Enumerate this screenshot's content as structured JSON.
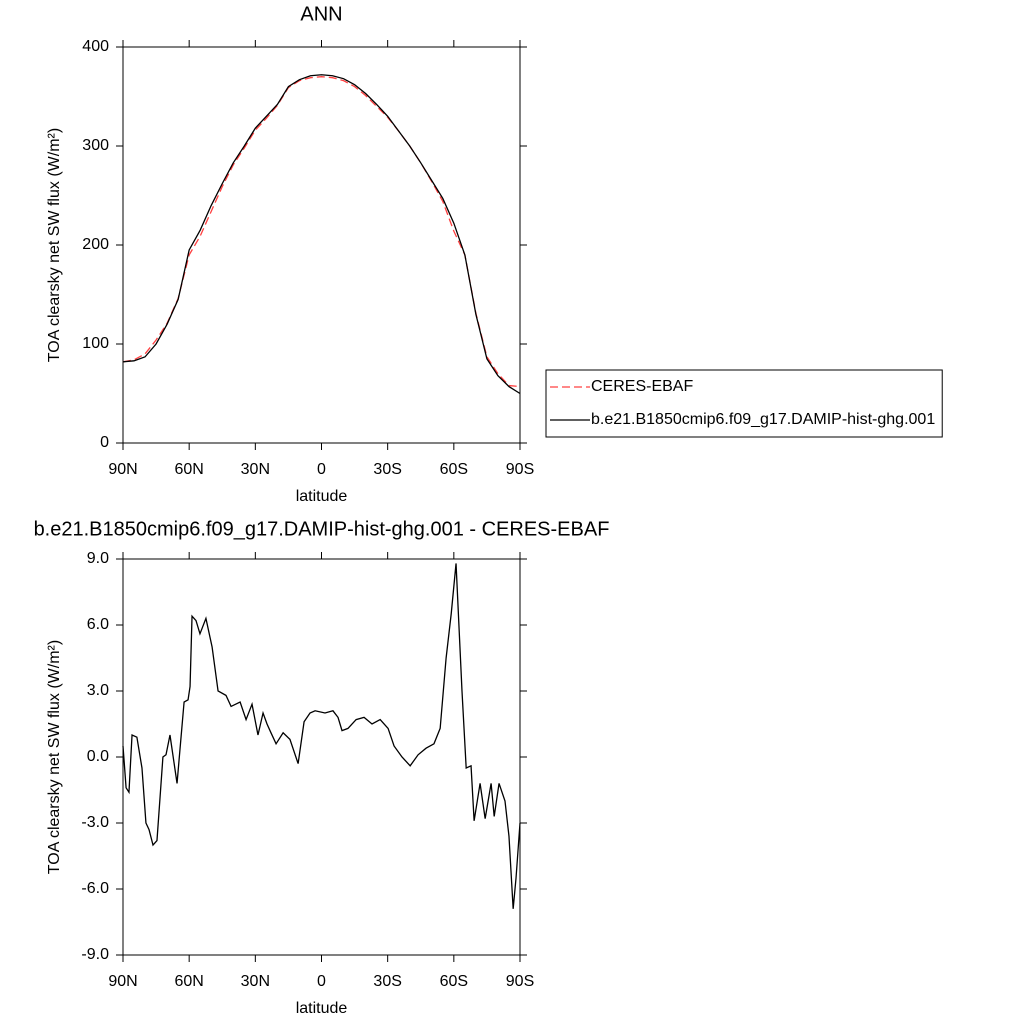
{
  "chart_data": [
    {
      "type": "line",
      "title": "ANN",
      "x_label": "latitude",
      "y_label": "TOA clearsky net SW flux (W/m²)",
      "x": [
        90,
        85,
        80,
        75,
        70,
        65,
        60,
        55,
        50,
        45,
        40,
        35,
        30,
        25,
        20,
        15,
        10,
        5,
        0,
        -5,
        -10,
        -15,
        -20,
        -25,
        -30,
        -35,
        -40,
        -45,
        -50,
        -55,
        -60,
        -65,
        -70,
        -75,
        -80,
        -85,
        -90
      ],
      "series": [
        {
          "name": "CERES-EBAF",
          "color": "#ff4040",
          "line_style": "dashed",
          "values": [
            82,
            84,
            90,
            104,
            121,
            146,
            190,
            209,
            234,
            259,
            281,
            298,
            316,
            328,
            341,
            359,
            366,
            369,
            370,
            369,
            366,
            360,
            351,
            340,
            329,
            315,
            300,
            283,
            264,
            244,
            214,
            190,
            131,
            87,
            70,
            58,
            57
          ]
        },
        {
          "name": "b.e21.B1850cmip6.f09_g17.DAMIP-hist-ghg.001",
          "color": "#000000",
          "line_style": "solid",
          "values": [
            82,
            83,
            87,
            100,
            120,
            145,
            195,
            215,
            240,
            262,
            283,
            300,
            318,
            330,
            342,
            360,
            367,
            371,
            372,
            371,
            368,
            362,
            353,
            342,
            330,
            315,
            300,
            283,
            265,
            247,
            222,
            190,
            130,
            85,
            68,
            57,
            50
          ]
        }
      ],
      "xlim": [
        90,
        -90
      ],
      "xticks": [
        {
          "value": 90,
          "label": "90N"
        },
        {
          "value": 60,
          "label": "60N"
        },
        {
          "value": 30,
          "label": "30N"
        },
        0,
        {
          "value": -30,
          "label": "30S"
        },
        {
          "value": -60,
          "label": "60S"
        },
        {
          "value": -90,
          "label": "90S"
        }
      ],
      "ylim": [
        0,
        400
      ],
      "yticks": [
        0,
        100,
        200,
        300,
        400
      ],
      "grid": false,
      "legend": "outside-right"
    },
    {
      "type": "line",
      "title": "b.e21.B1850cmip6.f09_g17.DAMIP-hist-ghg.001 - CERES-EBAF",
      "x_label": "latitude",
      "y_label": "TOA clearsky net SW flux (W/m²)",
      "x": [
        90,
        88.6,
        87.3,
        85.9,
        83.7,
        81.4,
        79.6,
        78.2,
        76.4,
        74.6,
        71.9,
        70.5,
        68.7,
        65.5,
        62.3,
        60.5,
        59.6,
        58.7,
        56.9,
        55.1,
        52.4,
        49.6,
        46.9,
        43.3,
        41.0,
        36.9,
        34.2,
        31.5,
        28.8,
        26.5,
        24.7,
        22.9,
        20.6,
        17.4,
        14.3,
        10.6,
        7.9,
        5.2,
        2.9,
        -1.6,
        -5.2,
        -7.5,
        -9.3,
        -12.0,
        -15.7,
        -19.3,
        -22.9,
        -26.6,
        -30.2,
        -32.9,
        -36.5,
        -40.2,
        -43.8,
        -47.4,
        -51.0,
        -53.8,
        -56.5,
        -58.8,
        -61.0,
        -63.7,
        -65.6,
        -67.8,
        -69.2,
        -71.9,
        -74.2,
        -76.9,
        -78.3,
        -80.5,
        -83.2,
        -85.0,
        -86.9,
        -88.2,
        -90
      ],
      "series": [
        {
          "color": "#000000",
          "line_style": "solid",
          "values": [
            0.5,
            -1.4,
            -1.6,
            1.0,
            0.9,
            -0.5,
            -3.0,
            -3.3,
            -4.0,
            -3.8,
            0.0,
            0.1,
            1.0,
            -1.2,
            2.5,
            2.6,
            3.2,
            6.4,
            6.2,
            5.6,
            6.3,
            5.0,
            3.0,
            2.8,
            2.3,
            2.5,
            1.7,
            2.4,
            1.0,
            2.0,
            1.5,
            1.1,
            0.6,
            1.1,
            0.8,
            -0.3,
            1.6,
            2.0,
            2.1,
            2.0,
            2.1,
            1.8,
            1.2,
            1.3,
            1.7,
            1.8,
            1.5,
            1.7,
            1.3,
            0.5,
            0.0,
            -0.4,
            0.1,
            0.4,
            0.6,
            1.3,
            4.5,
            6.5,
            8.8,
            3.0,
            -0.5,
            -0.4,
            -2.9,
            -1.2,
            -2.8,
            -1.2,
            -2.7,
            -1.2,
            -2.0,
            -3.6,
            -6.9,
            -5.5,
            -3.0
          ]
        }
      ],
      "xlim": [
        90,
        -90
      ],
      "xticks": [
        {
          "value": 90,
          "label": "90N"
        },
        {
          "value": 60,
          "label": "60N"
        },
        {
          "value": 30,
          "label": "30N"
        },
        0,
        {
          "value": -30,
          "label": "30S"
        },
        {
          "value": -60,
          "label": "60S"
        },
        {
          "value": -90,
          "label": "90S"
        }
      ],
      "ylim": [
        -9,
        9
      ],
      "yticks": [
        {
          "value": -9,
          "label": "-9.0"
        },
        {
          "value": -6,
          "label": "-6.0"
        },
        {
          "value": -3,
          "label": "-3.0"
        },
        {
          "value": 0,
          "label": "0.0"
        },
        {
          "value": 3,
          "label": "3.0"
        },
        {
          "value": 6,
          "label": "6.0"
        },
        {
          "value": 9,
          "label": "9.0"
        }
      ],
      "grid": false
    }
  ]
}
